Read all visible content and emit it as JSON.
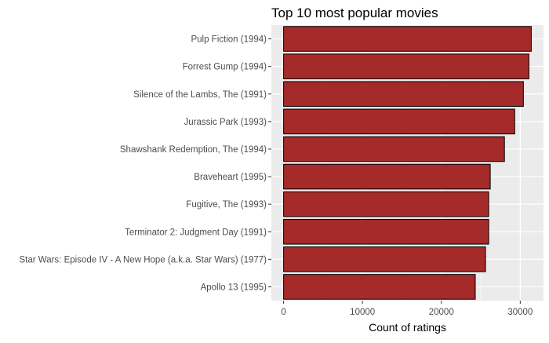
{
  "chart_data": {
    "type": "bar",
    "orientation": "horizontal",
    "title": "Top 10 most popular movies",
    "xlabel": "Count of ratings",
    "ylabel": "",
    "categories": [
      "Pulp Fiction (1994)",
      "Forrest Gump (1994)",
      "Silence of the Lambs, The (1991)",
      "Jurassic Park (1993)",
      "Shawshank Redemption, The (1994)",
      "Braveheart (1995)",
      "Fugitive, The (1993)",
      "Terminator 2: Judgment Day (1991)",
      "Star Wars: Episode IV - A New Hope (a.k.a. Star Wars) (1977)",
      "Apollo 13 (1995)"
    ],
    "values": [
      31400,
      31100,
      30400,
      29300,
      28000,
      26200,
      26000,
      26000,
      25600,
      24300
    ],
    "xlim": [
      -1550,
      32950
    ],
    "x_ticks": [
      0,
      10000,
      20000,
      30000
    ],
    "x_tick_labels": [
      "0",
      "10000",
      "20000",
      "30000"
    ],
    "grid": true,
    "bar_fill": "#a52a2a",
    "bar_stroke": "#000000",
    "panel_background": "#ebebeb",
    "grid_color": "#ffffff"
  }
}
